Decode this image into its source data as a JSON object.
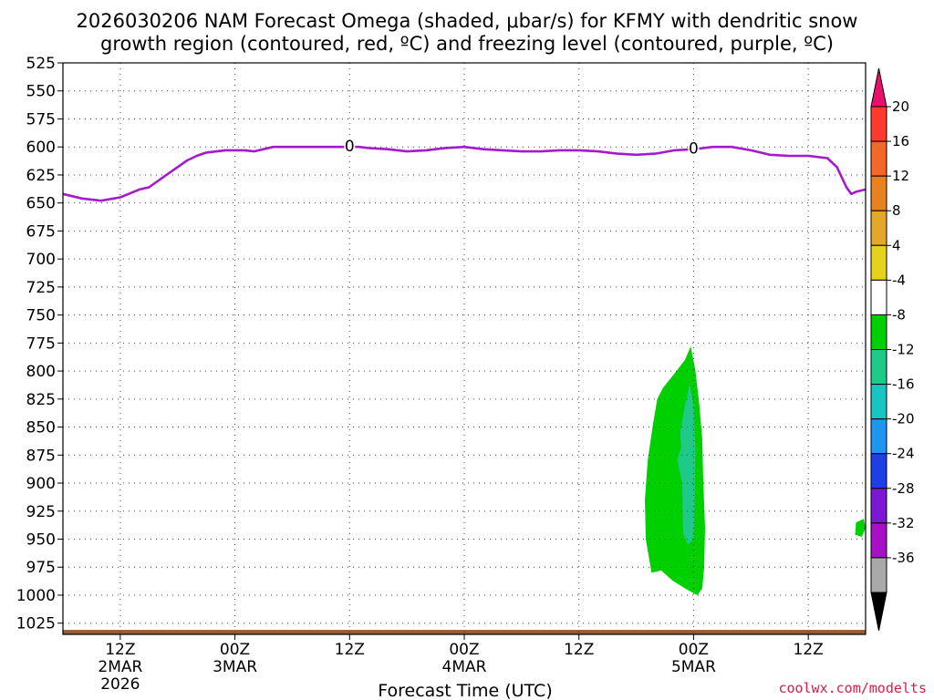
{
  "chart_data": {
    "type": "time-height cross section",
    "title_line1": "2026030206 NAM Forecast Omega (shaded, μbar/s) for KFMY with dendritic snow",
    "title_line2": "growth region (contoured, red, ºC) and freezing level (contoured, purple, ºC)",
    "xlabel": "Forecast Time (UTC)",
    "credit": "coolwx.com/modelts",
    "y_axis": {
      "levels": [
        525,
        550,
        575,
        600,
        625,
        650,
        675,
        700,
        725,
        750,
        775,
        800,
        825,
        850,
        875,
        900,
        925,
        950,
        975,
        1000,
        1025
      ],
      "range": [
        525,
        1035
      ],
      "unit": "hPa"
    },
    "x_axis": {
      "range_hours": [
        6,
        90
      ],
      "ticks": [
        {
          "hour": 12,
          "label": "12Z",
          "date": "2MAR",
          "year": "2026"
        },
        {
          "hour": 24,
          "label": "00Z",
          "date": "3MAR",
          "year": ""
        },
        {
          "hour": 36,
          "label": "12Z",
          "date": "",
          "year": ""
        },
        {
          "hour": 48,
          "label": "00Z",
          "date": "4MAR",
          "year": ""
        },
        {
          "hour": 60,
          "label": "12Z",
          "date": "",
          "year": ""
        },
        {
          "hour": 72,
          "label": "00Z",
          "date": "5MAR",
          "year": ""
        },
        {
          "hour": 84,
          "label": "12Z",
          "date": "",
          "year": ""
        }
      ]
    },
    "freezing_level": {
      "label": "0",
      "label_positions_hours": [
        36,
        72
      ],
      "points": [
        [
          6,
          642
        ],
        [
          8,
          646
        ],
        [
          10,
          648
        ],
        [
          12,
          645
        ],
        [
          14,
          638
        ],
        [
          15,
          636
        ],
        [
          17,
          624
        ],
        [
          19,
          612
        ],
        [
          20,
          608
        ],
        [
          21,
          605
        ],
        [
          23,
          603
        ],
        [
          25,
          603
        ],
        [
          26,
          604
        ],
        [
          28,
          600
        ],
        [
          30,
          600
        ],
        [
          33,
          600
        ],
        [
          35,
          600
        ],
        [
          37,
          600
        ],
        [
          38,
          601
        ],
        [
          40,
          602
        ],
        [
          42,
          604
        ],
        [
          44,
          603
        ],
        [
          46,
          601
        ],
        [
          48,
          600
        ],
        [
          50,
          602
        ],
        [
          52,
          603
        ],
        [
          54,
          604
        ],
        [
          56,
          604
        ],
        [
          58,
          603
        ],
        [
          60,
          603
        ],
        [
          62,
          604
        ],
        [
          64,
          606
        ],
        [
          66,
          607
        ],
        [
          68,
          606
        ],
        [
          70,
          603
        ],
        [
          72,
          602
        ],
        [
          74,
          600
        ],
        [
          76,
          600
        ],
        [
          78,
          603
        ],
        [
          80,
          607
        ],
        [
          82,
          608
        ],
        [
          84,
          608
        ],
        [
          86,
          610
        ],
        [
          87,
          618
        ],
        [
          88,
          636
        ],
        [
          88.5,
          642
        ],
        [
          89,
          640
        ],
        [
          90,
          638
        ]
      ]
    },
    "omega_regions": [
      {
        "band": "-8 to -4",
        "points": [
          [
            67.6,
            980
          ],
          [
            67.0,
            950
          ],
          [
            66.9,
            915
          ],
          [
            67.2,
            880
          ],
          [
            67.7,
            850
          ],
          [
            68.2,
            825
          ],
          [
            68.8,
            815
          ],
          [
            70.2,
            800
          ],
          [
            71.1,
            790
          ],
          [
            71.7,
            778
          ],
          [
            72.2,
            800
          ],
          [
            72.6,
            830
          ],
          [
            72.9,
            860
          ],
          [
            73.0,
            895
          ],
          [
            73.2,
            940
          ],
          [
            73.1,
            975
          ],
          [
            72.9,
            994
          ],
          [
            72.4,
            1000
          ],
          [
            71.3,
            995
          ],
          [
            69.8,
            987
          ],
          [
            68.6,
            978
          ]
        ]
      },
      {
        "band": "-12 to -8",
        "points": [
          [
            70.6,
            855
          ],
          [
            71.1,
            830
          ],
          [
            71.6,
            812
          ],
          [
            72.0,
            830
          ],
          [
            72.2,
            870
          ],
          [
            72.1,
            920
          ],
          [
            72.0,
            950
          ],
          [
            71.4,
            955
          ],
          [
            70.9,
            945
          ],
          [
            70.8,
            900
          ],
          [
            70.3,
            880
          ],
          [
            70.7,
            868
          ]
        ]
      },
      {
        "band": "-8 to -4",
        "points": [
          [
            89.0,
            935
          ],
          [
            89.8,
            932
          ],
          [
            90.0,
            940
          ],
          [
            89.6,
            948
          ],
          [
            88.9,
            946
          ]
        ]
      }
    ],
    "terrain_top_hpa": 1031,
    "colorbar": {
      "labels": [
        "20",
        "16",
        "12",
        "8",
        "4",
        "-4",
        "-8",
        "-12",
        "-16",
        "-20",
        "-24",
        "-28",
        "-32",
        "-36"
      ],
      "colors": [
        "#e8106b",
        "#ff3b2f",
        "#f4672a",
        "#e8821e",
        "#e3a82b",
        "#e6d21e",
        "#ffffff",
        "#00d000",
        "#1ec98a",
        "#18c4c4",
        "#1c96ee",
        "#1e3fe6",
        "#7b18d4",
        "#a810c8",
        "#a9a9a9",
        "#000000"
      ]
    }
  }
}
